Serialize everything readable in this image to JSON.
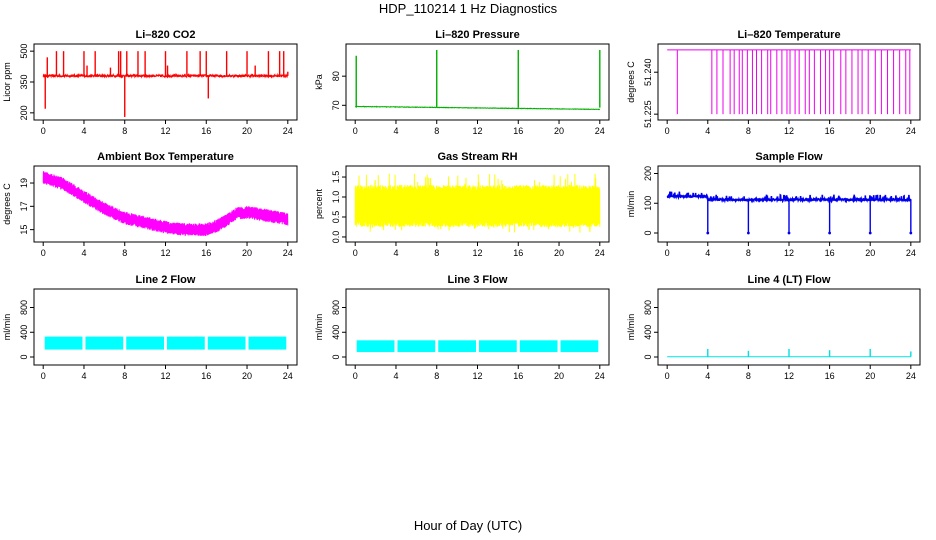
{
  "figure": {
    "title": "HDP_110214  1 Hz Diagnostics",
    "xlabel": "Hour of Day (UTC)"
  },
  "chart_data": [
    {
      "id": "co2",
      "type": "line",
      "title": "Li–820 CO2",
      "ylabel": "Licor ppm",
      "color": "#ff0000",
      "xlim": [
        0,
        24
      ],
      "ylim": [
        180,
        520
      ],
      "xticks": [
        0,
        4,
        8,
        12,
        16,
        20,
        24
      ],
      "yticks": [
        {
          "v": 200,
          "label": "200"
        },
        {
          "v": 350,
          "label": "350"
        },
        {
          "v": 500,
          "label": "500"
        }
      ],
      "series": [
        {
          "name": "CO2",
          "baseline": 380,
          "noise": 6,
          "spikes": [
            [
              0.2,
              220
            ],
            [
              0.4,
              470
            ],
            [
              1.3,
              500
            ],
            [
              2,
              500
            ],
            [
              4,
              500
            ],
            [
              4.3,
              430
            ],
            [
              5.1,
              500
            ],
            [
              6.6,
              420
            ],
            [
              7.4,
              500
            ],
            [
              7.6,
              500
            ],
            [
              8,
              180
            ],
            [
              8.2,
              500
            ],
            [
              9.3,
              500
            ],
            [
              10,
              500
            ],
            [
              12,
              500
            ],
            [
              12.2,
              430
            ],
            [
              14.1,
              500
            ],
            [
              15.4,
              500
            ],
            [
              16,
              500
            ],
            [
              16.2,
              270
            ],
            [
              18,
              500
            ],
            [
              20,
              500
            ],
            [
              20.8,
              430
            ],
            [
              22.1,
              500
            ],
            [
              23.2,
              500
            ],
            [
              23.6,
              500
            ],
            [
              24,
              400
            ]
          ]
        }
      ]
    },
    {
      "id": "pressure",
      "type": "line",
      "title": "Li–820 Pressure",
      "ylabel": "kPa",
      "color": "#00b000",
      "xlim": [
        0,
        24
      ],
      "ylim": [
        66,
        90
      ],
      "xticks": [
        0,
        4,
        8,
        12,
        16,
        20,
        24
      ],
      "yticks": [
        {
          "v": 70,
          "label": "70"
        },
        {
          "v": 80,
          "label": "80"
        }
      ],
      "series": [
        {
          "name": "Pressure",
          "start": 69.6,
          "end": 68.6,
          "noise": 0.15,
          "spikes": [
            [
              0.1,
              87
            ],
            [
              8,
              89
            ],
            [
              16,
              89
            ],
            [
              24,
              89
            ]
          ]
        }
      ]
    },
    {
      "id": "licor_temp",
      "type": "line",
      "title": "Li–820 Temperature",
      "ylabel": "degrees C",
      "color": "#ee00ee",
      "xlim": [
        0,
        24
      ],
      "ylim": [
        51.224,
        51.249
      ],
      "xticks": [
        0,
        4,
        8,
        12,
        16,
        20,
        24
      ],
      "yticks": [
        {
          "v": 51.225,
          "label": "51.225"
        },
        {
          "v": 51.24,
          "label": "51.240"
        }
      ],
      "series": [
        {
          "name": "Temperature",
          "high": 51.248,
          "low": 51.225,
          "dropouts": [
            1.0,
            4.4,
            4.9,
            5.5,
            6.2,
            6.6,
            7.1,
            7.4,
            7.9,
            8.4,
            8.8,
            9.3,
            9.9,
            10.2,
            10.8,
            11.3,
            11.8,
            12.1,
            12.6,
            13.0,
            13.6,
            14.0,
            14.5,
            15.1,
            15.6,
            16.0,
            16.4,
            17.1,
            17.6,
            18.2,
            18.8,
            19.2,
            19.8,
            20.5,
            21.1,
            21.7,
            22.3,
            22.9,
            23.5,
            23.9
          ]
        }
      ]
    },
    {
      "id": "box_temp",
      "type": "line",
      "title": "Ambient Box Temperature",
      "ylabel": "degrees C",
      "color": "#ff00ff",
      "xlim": [
        0,
        24
      ],
      "ylim": [
        14.2,
        20.2
      ],
      "xticks": [
        0,
        4,
        8,
        12,
        16,
        20,
        24
      ],
      "yticks": [
        {
          "v": 15,
          "label": "15"
        },
        {
          "v": 17,
          "label": "17"
        },
        {
          "v": 19,
          "label": "19"
        }
      ],
      "series": [
        {
          "name": "Box Temp",
          "band": 0.55,
          "points": [
            [
              0,
              19.5
            ],
            [
              2,
              18.9
            ],
            [
              4,
              17.8
            ],
            [
              6,
              16.8
            ],
            [
              8,
              16.0
            ],
            [
              10,
              15.6
            ],
            [
              12,
              15.2
            ],
            [
              14,
              15.0
            ],
            [
              16,
              15.0
            ],
            [
              17,
              15.3
            ],
            [
              18,
              15.8
            ],
            [
              19,
              16.4
            ],
            [
              20,
              16.5
            ],
            [
              22,
              16.2
            ],
            [
              24,
              15.9
            ]
          ]
        }
      ]
    },
    {
      "id": "rh",
      "type": "line",
      "title": "Gas Stream RH",
      "ylabel": "percent",
      "color": "#ffff00",
      "xlim": [
        0,
        24
      ],
      "ylim": [
        -0.05,
        1.7
      ],
      "xticks": [
        0,
        4,
        8,
        12,
        16,
        20,
        24
      ],
      "yticks": [
        {
          "v": 0.0,
          "label": "0.0"
        },
        {
          "v": 0.5,
          "label": "0.5"
        },
        {
          "v": 1.0,
          "label": "1.0"
        },
        {
          "v": 1.5,
          "label": "1.5"
        }
      ],
      "series": [
        {
          "name": "RH",
          "low": 0.25,
          "high": 1.3,
          "max_spike": 1.6,
          "min_spike": 0.1
        }
      ]
    },
    {
      "id": "sample_flow",
      "type": "line",
      "title": "Sample Flow",
      "ylabel": "ml/min",
      "color": "#0000ee",
      "xlim": [
        0,
        24
      ],
      "ylim": [
        -20,
        215
      ],
      "xticks": [
        0,
        4,
        8,
        12,
        16,
        20,
        24
      ],
      "yticks": [
        {
          "v": 0,
          "label": "0"
        },
        {
          "v": 100,
          "label": "100"
        },
        {
          "v": 200,
          "label": "200"
        }
      ],
      "series": [
        {
          "name": "Sample Flow",
          "low_level": 112,
          "high_level": 128,
          "switch_at": 4,
          "dips": [
            4,
            8,
            12,
            16,
            20,
            24
          ],
          "dip_value": 0
        }
      ]
    },
    {
      "id": "line2",
      "type": "line",
      "title": "Line 2 Flow",
      "ylabel": "ml/min",
      "color": "#00ffff",
      "xlim": [
        0,
        24
      ],
      "ylim": [
        -80,
        1050
      ],
      "xticks": [
        0,
        4,
        8,
        12,
        16,
        20,
        24
      ],
      "yticks": [
        {
          "v": 0,
          "label": "0"
        },
        {
          "v": 400,
          "label": "400"
        },
        {
          "v": 800,
          "label": "800"
        }
      ],
      "series": [
        {
          "name": "Line 2",
          "low": 120,
          "high": 330,
          "breaks": [
            4,
            8,
            12,
            16,
            20,
            24
          ]
        }
      ]
    },
    {
      "id": "line3",
      "type": "line",
      "title": "Line 3 Flow",
      "ylabel": "ml/min",
      "color": "#00ffff",
      "xlim": [
        0,
        24
      ],
      "ylim": [
        -80,
        1050
      ],
      "xticks": [
        0,
        4,
        8,
        12,
        16,
        20,
        24
      ],
      "yticks": [
        {
          "v": 0,
          "label": "0"
        },
        {
          "v": 400,
          "label": "400"
        },
        {
          "v": 800,
          "label": "800"
        }
      ],
      "series": [
        {
          "name": "Line 3",
          "low": 80,
          "high": 270,
          "breaks": [
            4,
            8,
            12,
            16,
            20,
            24
          ]
        }
      ]
    },
    {
      "id": "line4",
      "type": "line",
      "title": "Line 4 (LT) Flow",
      "ylabel": "ml/min",
      "color": "#00e0e0",
      "xlim": [
        0,
        24
      ],
      "ylim": [
        -80,
        1050
      ],
      "xticks": [
        0,
        4,
        8,
        12,
        16,
        20,
        24
      ],
      "yticks": [
        {
          "v": 0,
          "label": "0"
        },
        {
          "v": 400,
          "label": "400"
        },
        {
          "v": 800,
          "label": "800"
        }
      ],
      "series": [
        {
          "name": "Line 4",
          "baseline": 5,
          "spikes": [
            [
              4,
              130
            ],
            [
              8,
              100
            ],
            [
              12,
              130
            ],
            [
              16,
              110
            ],
            [
              20,
              130
            ],
            [
              24,
              90
            ]
          ]
        }
      ]
    }
  ]
}
